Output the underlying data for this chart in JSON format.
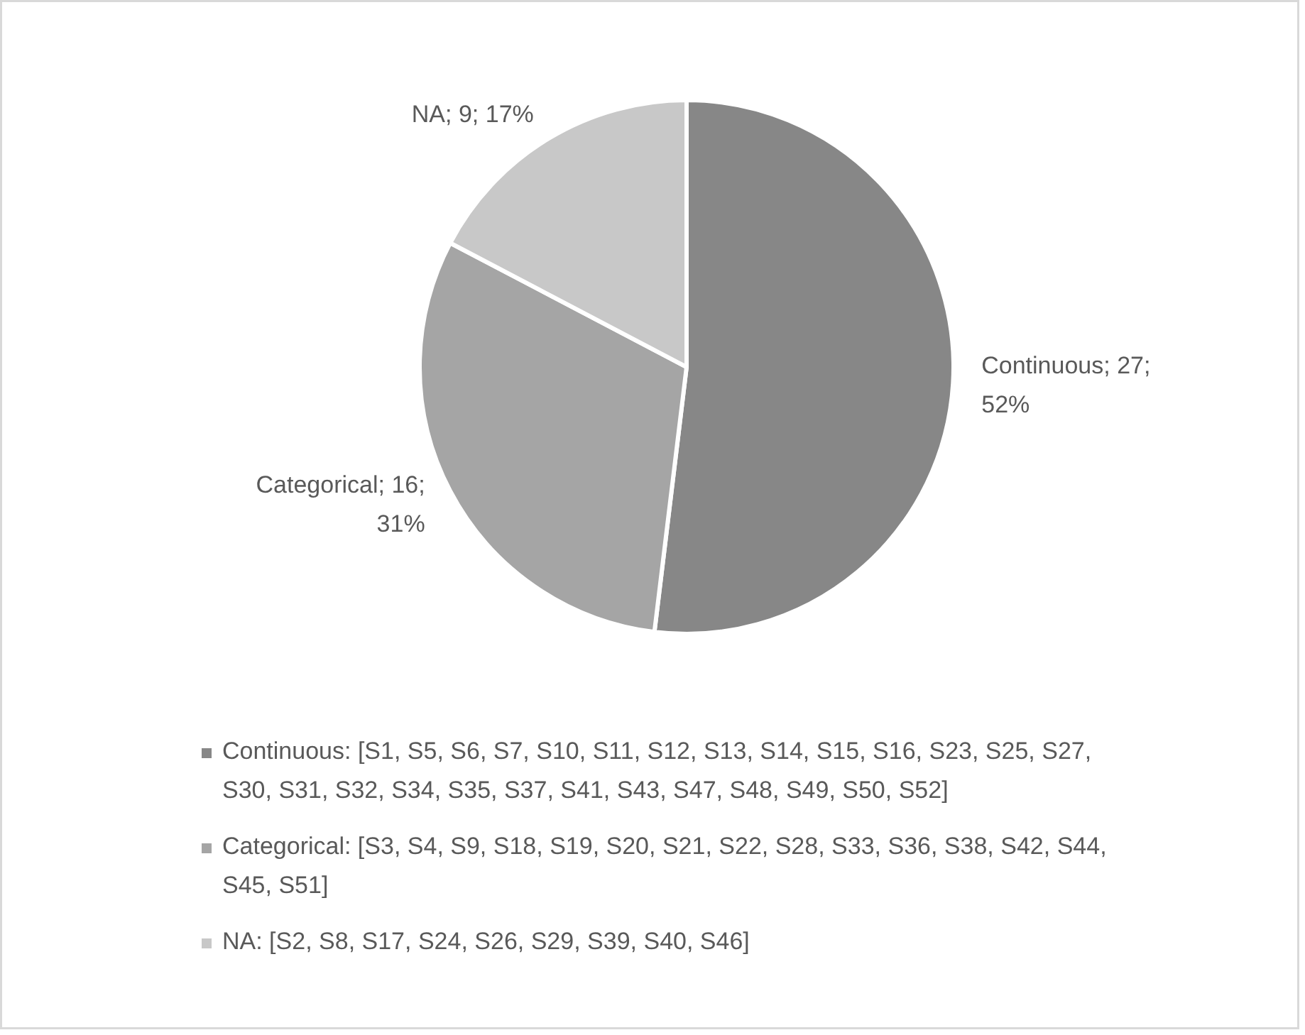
{
  "chart_data": {
    "type": "pie",
    "categories": [
      "Continuous: [S1, S5, S6, S7, S10, S11, S12, S13, S14, S15, S16, S23, S25, S27, S30, S31, S32, S34, S35, S37, S41, S43, S47, S48, S49, S50, S52]",
      "Categorical: [S3, S4, S9, S18, S19, S20, S21, S22, S28, S33, S36, S38, S42, S44, S45, S51]",
      "NA: [S2, S8, S17, S24, S26, S29, S39, S40, S46]"
    ],
    "values": [
      27,
      16,
      9
    ],
    "colors": [
      "#878787",
      "#a5a5a5",
      "#c8c8c8"
    ],
    "value_labels": [
      "Continuous; 27; 52%",
      "Categorical; 16; 31%",
      "NA; 9; 17%"
    ],
    "legend": "bottom"
  }
}
